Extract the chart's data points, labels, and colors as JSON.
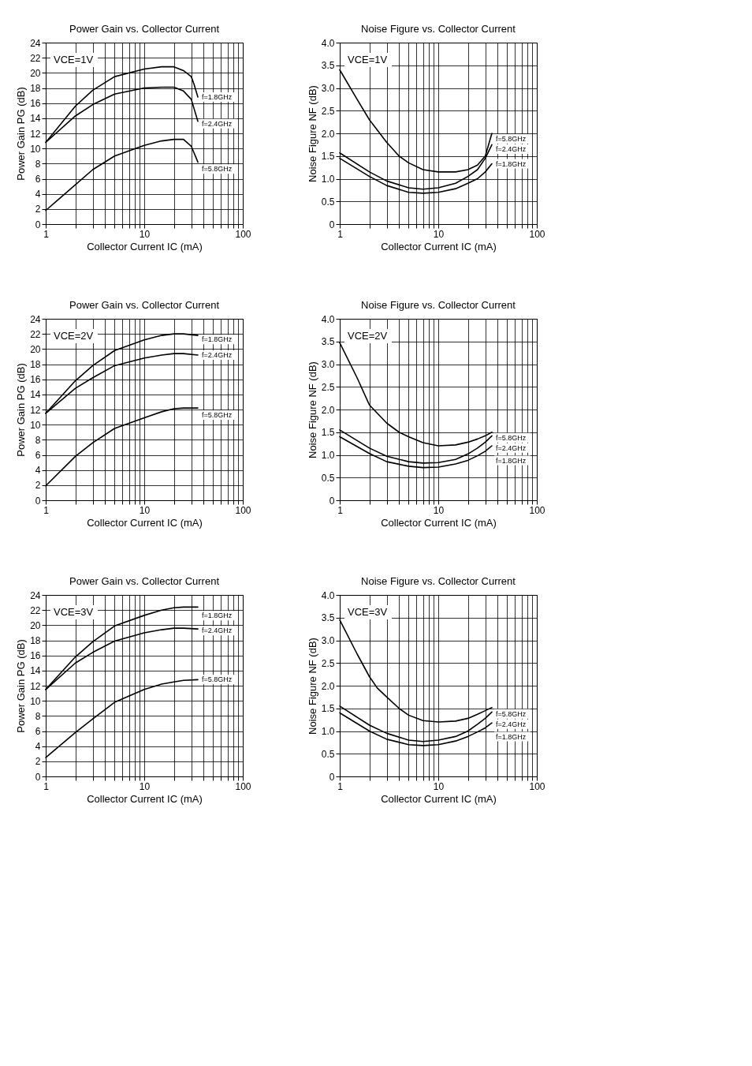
{
  "chart_data": [
    {
      "type": "line",
      "title": "Power Gain vs. Collector Current",
      "xlabel": "Collector Current   IC (mA)",
      "ylabel": "Power Gain   PG (dB)",
      "annotations": [
        "VCE=1V"
      ],
      "log": "x",
      "grid": true,
      "line_style": "solid",
      "xlim": [
        1,
        100
      ],
      "xticks": [
        1,
        {
          "value": 2,
          "label": null
        },
        {
          "value": 3,
          "label": null
        },
        {
          "value": 4,
          "label": null
        },
        {
          "value": 5,
          "label": null
        },
        {
          "value": 6,
          "label": null
        },
        {
          "value": 7,
          "label": null
        },
        {
          "value": 8,
          "label": null
        },
        {
          "value": 9,
          "label": null
        },
        10,
        {
          "value": 20,
          "label": null
        },
        {
          "value": 30,
          "label": null
        },
        {
          "value": 40,
          "label": null
        },
        {
          "value": 50,
          "label": null
        },
        {
          "value": 60,
          "label": null
        },
        {
          "value": 70,
          "label": null
        },
        {
          "value": 80,
          "label": null
        },
        {
          "value": 90,
          "label": null
        },
        100
      ],
      "ylim": [
        0,
        24
      ],
      "yticks": [
        0,
        2,
        4,
        6,
        8,
        10,
        12,
        14,
        16,
        18,
        20,
        22,
        24
      ],
      "series": [
        {
          "name": "f=1.8GHz",
          "color": "#000000",
          "x": [
            1,
            2,
            3,
            5,
            10,
            15,
            20,
            25,
            30,
            32,
            35
          ],
          "values": [
            10.8,
            15.6,
            17.7,
            19.5,
            20.5,
            20.8,
            20.8,
            20.3,
            19.5,
            18.5,
            16.8
          ]
        },
        {
          "name": "f=2.4GHz",
          "color": "#000000",
          "x": [
            1,
            2,
            3,
            5,
            10,
            15,
            20,
            25,
            30,
            35
          ],
          "values": [
            10.8,
            14.3,
            15.8,
            17.2,
            18.0,
            18.1,
            18.1,
            17.6,
            16.5,
            13.6
          ]
        },
        {
          "name": "f=5.8GHz",
          "color": "#000000",
          "x": [
            1,
            2,
            3,
            5,
            10,
            15,
            20,
            25,
            30,
            35
          ],
          "values": [
            1.8,
            5.2,
            7.2,
            9.0,
            10.4,
            11.0,
            11.2,
            11.2,
            10.3,
            8.2
          ]
        }
      ]
    },
    {
      "type": "line",
      "title": "Noise Figure vs. Collector Current",
      "xlabel": "Collector Current   IC (mA)",
      "ylabel": "Noise Figure   NF   (dB)",
      "annotations": [
        "VCE=1V"
      ],
      "log": "x",
      "grid": true,
      "line_style": "solid",
      "xlim": [
        1,
        100
      ],
      "xticks": [
        1,
        {
          "value": 2,
          "label": null
        },
        {
          "value": 3,
          "label": null
        },
        {
          "value": 4,
          "label": null
        },
        {
          "value": 5,
          "label": null
        },
        {
          "value": 6,
          "label": null
        },
        {
          "value": 7,
          "label": null
        },
        {
          "value": 8,
          "label": null
        },
        {
          "value": 9,
          "label": null
        },
        10,
        {
          "value": 20,
          "label": null
        },
        {
          "value": 30,
          "label": null
        },
        {
          "value": 40,
          "label": null
        },
        {
          "value": 50,
          "label": null
        },
        {
          "value": 60,
          "label": null
        },
        {
          "value": 70,
          "label": null
        },
        {
          "value": 80,
          "label": null
        },
        {
          "value": 90,
          "label": null
        },
        100
      ],
      "ylim": [
        0,
        4
      ],
      "yticks": [
        0,
        0.5,
        {
          "value": 1,
          "label": "1.0"
        },
        1.5,
        {
          "value": 2,
          "label": "2.0"
        },
        2.5,
        {
          "value": 3,
          "label": "3.0"
        },
        3.5,
        {
          "value": 4,
          "label": "4.0"
        }
      ],
      "series": [
        {
          "name": "f=5.8GHz",
          "color": "#000000",
          "x": [
            1,
            1.5,
            2,
            3,
            4,
            5,
            7,
            10,
            15,
            20,
            25,
            30,
            35
          ],
          "values": [
            3.4,
            2.75,
            2.3,
            1.8,
            1.5,
            1.35,
            1.2,
            1.15,
            1.15,
            1.2,
            1.3,
            1.5,
            2.0
          ]
        },
        {
          "name": "f=2.4GHz",
          "color": "#000000",
          "x": [
            1,
            2,
            3,
            5,
            7,
            10,
            15,
            20,
            25,
            30,
            35
          ],
          "values": [
            1.57,
            1.15,
            0.95,
            0.8,
            0.77,
            0.8,
            0.9,
            1.05,
            1.2,
            1.45,
            1.75
          ]
        },
        {
          "name": "f=1.8GHz",
          "color": "#000000",
          "x": [
            1,
            2,
            3,
            5,
            7,
            10,
            15,
            20,
            25,
            30,
            35
          ],
          "values": [
            1.45,
            1.05,
            0.85,
            0.7,
            0.68,
            0.7,
            0.78,
            0.9,
            1.0,
            1.15,
            1.33
          ]
        }
      ]
    },
    {
      "type": "line",
      "title": "Power Gain vs. Collector Current",
      "xlabel": "Collector Current   IC (mA)",
      "ylabel": "Power Gain   PG (dB)",
      "annotations": [
        "VCE=2V"
      ],
      "log": "x",
      "grid": true,
      "line_style": "solid",
      "xlim": [
        1,
        100
      ],
      "xticks": [
        1,
        {
          "value": 2,
          "label": null
        },
        {
          "value": 3,
          "label": null
        },
        {
          "value": 4,
          "label": null
        },
        {
          "value": 5,
          "label": null
        },
        {
          "value": 6,
          "label": null
        },
        {
          "value": 7,
          "label": null
        },
        {
          "value": 8,
          "label": null
        },
        {
          "value": 9,
          "label": null
        },
        10,
        {
          "value": 20,
          "label": null
        },
        {
          "value": 30,
          "label": null
        },
        {
          "value": 40,
          "label": null
        },
        {
          "value": 50,
          "label": null
        },
        {
          "value": 60,
          "label": null
        },
        {
          "value": 70,
          "label": null
        },
        {
          "value": 80,
          "label": null
        },
        {
          "value": 90,
          "label": null
        },
        100
      ],
      "ylim": [
        0,
        24
      ],
      "yticks": [
        0,
        2,
        4,
        6,
        8,
        10,
        12,
        14,
        16,
        18,
        20,
        22,
        24
      ],
      "series": [
        {
          "name": "f=1.8GHz",
          "color": "#000000",
          "x": [
            1,
            2,
            3,
            5,
            10,
            15,
            20,
            25,
            35
          ],
          "values": [
            11.5,
            15.8,
            17.8,
            19.8,
            21.2,
            21.8,
            22.0,
            22.0,
            21.8
          ]
        },
        {
          "name": "f=2.4GHz",
          "color": "#000000",
          "x": [
            1,
            2,
            3,
            5,
            10,
            15,
            20,
            25,
            35
          ],
          "values": [
            11.5,
            14.8,
            16.2,
            17.8,
            18.8,
            19.2,
            19.4,
            19.4,
            19.2
          ]
        },
        {
          "name": "f=5.8GHz",
          "color": "#000000",
          "x": [
            1,
            2,
            3,
            5,
            10,
            15,
            20,
            25,
            35
          ],
          "values": [
            1.9,
            5.8,
            7.6,
            9.5,
            10.9,
            11.7,
            12.1,
            12.2,
            12.2
          ]
        }
      ]
    },
    {
      "type": "line",
      "title": "Noise Figure vs. Collector Current",
      "xlabel": "Collector Current   IC (mA)",
      "ylabel": "Noise Figure   NF   (dB)",
      "annotations": [
        "VCE=2V"
      ],
      "log": "x",
      "grid": true,
      "line_style": "solid",
      "xlim": [
        1,
        100
      ],
      "xticks": [
        1,
        {
          "value": 2,
          "label": null
        },
        {
          "value": 3,
          "label": null
        },
        {
          "value": 4,
          "label": null
        },
        {
          "value": 5,
          "label": null
        },
        {
          "value": 6,
          "label": null
        },
        {
          "value": 7,
          "label": null
        },
        {
          "value": 8,
          "label": null
        },
        {
          "value": 9,
          "label": null
        },
        10,
        {
          "value": 20,
          "label": null
        },
        {
          "value": 30,
          "label": null
        },
        {
          "value": 40,
          "label": null
        },
        {
          "value": 50,
          "label": null
        },
        {
          "value": 60,
          "label": null
        },
        {
          "value": 70,
          "label": null
        },
        {
          "value": 80,
          "label": null
        },
        {
          "value": 90,
          "label": null
        },
        100
      ],
      "ylim": [
        0,
        4
      ],
      "yticks": [
        0,
        0.5,
        {
          "value": 1,
          "label": "1.0"
        },
        1.5,
        {
          "value": 2,
          "label": "2.0"
        },
        2.5,
        {
          "value": 3,
          "label": "3.0"
        },
        3.5,
        {
          "value": 4,
          "label": "4.0"
        }
      ],
      "series": [
        {
          "name": "f=5.8GHz",
          "color": "#000000",
          "x": [
            1,
            1.5,
            2,
            3,
            4,
            5,
            7,
            10,
            15,
            20,
            25,
            30,
            35
          ],
          "values": [
            3.47,
            2.7,
            2.1,
            1.7,
            1.5,
            1.4,
            1.27,
            1.2,
            1.22,
            1.28,
            1.35,
            1.42,
            1.5
          ]
        },
        {
          "name": "f=2.4GHz",
          "color": "#000000",
          "x": [
            1,
            2,
            3,
            5,
            7,
            10,
            15,
            20,
            25,
            30,
            35
          ],
          "values": [
            1.55,
            1.15,
            0.97,
            0.85,
            0.82,
            0.83,
            0.9,
            1.02,
            1.15,
            1.28,
            1.42
          ]
        },
        {
          "name": "f=1.8GHz",
          "color": "#000000",
          "x": [
            1,
            2,
            3,
            5,
            7,
            10,
            15,
            20,
            25,
            30,
            35
          ],
          "values": [
            1.4,
            1.03,
            0.85,
            0.75,
            0.72,
            0.73,
            0.8,
            0.88,
            0.98,
            1.08,
            1.2
          ]
        }
      ]
    },
    {
      "type": "line",
      "title": "Power Gain vs. Collector Current",
      "xlabel": "Collector Current   IC (mA)",
      "ylabel": "Power Gain   PG (dB)",
      "annotations": [
        "VCE=3V"
      ],
      "log": "x",
      "grid": true,
      "line_style": "solid",
      "xlim": [
        1,
        100
      ],
      "xticks": [
        1,
        {
          "value": 2,
          "label": null
        },
        {
          "value": 3,
          "label": null
        },
        {
          "value": 4,
          "label": null
        },
        {
          "value": 5,
          "label": null
        },
        {
          "value": 6,
          "label": null
        },
        {
          "value": 7,
          "label": null
        },
        {
          "value": 8,
          "label": null
        },
        {
          "value": 9,
          "label": null
        },
        10,
        {
          "value": 20,
          "label": null
        },
        {
          "value": 30,
          "label": null
        },
        {
          "value": 40,
          "label": null
        },
        {
          "value": 50,
          "label": null
        },
        {
          "value": 60,
          "label": null
        },
        {
          "value": 70,
          "label": null
        },
        {
          "value": 80,
          "label": null
        },
        {
          "value": 90,
          "label": null
        },
        100
      ],
      "ylim": [
        0,
        24
      ],
      "yticks": [
        0,
        2,
        4,
        6,
        8,
        10,
        12,
        14,
        16,
        18,
        20,
        22,
        24
      ],
      "series": [
        {
          "name": "f=1.8GHz",
          "color": "#000000",
          "x": [
            1,
            2,
            3,
            5,
            10,
            15,
            20,
            25,
            35
          ],
          "values": [
            11.5,
            15.8,
            17.8,
            19.9,
            21.3,
            22.0,
            22.3,
            22.4,
            22.4
          ]
        },
        {
          "name": "f=2.4GHz",
          "color": "#000000",
          "x": [
            1,
            2,
            3,
            5,
            10,
            15,
            20,
            25,
            35
          ],
          "values": [
            11.5,
            15.0,
            16.4,
            17.9,
            19.0,
            19.4,
            19.6,
            19.6,
            19.5
          ]
        },
        {
          "name": "f=5.8GHz",
          "color": "#000000",
          "x": [
            1,
            2,
            3,
            5,
            10,
            15,
            20,
            25,
            35
          ],
          "values": [
            2.5,
            5.8,
            7.6,
            9.8,
            11.5,
            12.2,
            12.5,
            12.7,
            12.8
          ]
        }
      ]
    },
    {
      "type": "line",
      "title": "Noise Figure vs. Collector Current",
      "xlabel": "Collector Current   IC (mA)",
      "ylabel": "Noise Figure   NF   (dB)",
      "annotations": [
        "VCE=3V"
      ],
      "log": "x",
      "grid": true,
      "line_style": "solid",
      "xlim": [
        1,
        100
      ],
      "xticks": [
        1,
        {
          "value": 2,
          "label": null
        },
        {
          "value": 3,
          "label": null
        },
        {
          "value": 4,
          "label": null
        },
        {
          "value": 5,
          "label": null
        },
        {
          "value": 6,
          "label": null
        },
        {
          "value": 7,
          "label": null
        },
        {
          "value": 8,
          "label": null
        },
        {
          "value": 9,
          "label": null
        },
        10,
        {
          "value": 20,
          "label": null
        },
        {
          "value": 30,
          "label": null
        },
        {
          "value": 40,
          "label": null
        },
        {
          "value": 50,
          "label": null
        },
        {
          "value": 60,
          "label": null
        },
        {
          "value": 70,
          "label": null
        },
        {
          "value": 80,
          "label": null
        },
        {
          "value": 90,
          "label": null
        },
        100
      ],
      "ylim": [
        0,
        4
      ],
      "yticks": [
        0,
        0.5,
        {
          "value": 1,
          "label": "1.0"
        },
        1.5,
        {
          "value": 2,
          "label": "2.0"
        },
        2.5,
        {
          "value": 3,
          "label": "3.0"
        },
        3.5,
        {
          "value": 4,
          "label": "4.0"
        }
      ],
      "series": [
        {
          "name": "f=5.8GHz",
          "color": "#000000",
          "x": [
            1,
            1.5,
            2,
            2.4,
            3,
            4,
            5,
            7,
            10,
            15,
            20,
            25,
            30,
            35
          ],
          "values": [
            3.45,
            2.7,
            2.2,
            1.95,
            1.75,
            1.5,
            1.35,
            1.23,
            1.2,
            1.22,
            1.28,
            1.37,
            1.45,
            1.52
          ]
        },
        {
          "name": "f=2.4GHz",
          "color": "#000000",
          "x": [
            1,
            2,
            3,
            5,
            7,
            10,
            15,
            20,
            25,
            30,
            35
          ],
          "values": [
            1.55,
            1.13,
            0.95,
            0.8,
            0.77,
            0.8,
            0.88,
            1.0,
            1.15,
            1.28,
            1.42
          ]
        },
        {
          "name": "f=1.8GHz",
          "color": "#000000",
          "x": [
            1,
            2,
            3,
            5,
            7,
            10,
            15,
            20,
            25,
            30,
            35
          ],
          "values": [
            1.4,
            1.0,
            0.82,
            0.7,
            0.68,
            0.7,
            0.78,
            0.88,
            0.98,
            1.07,
            1.18
          ]
        }
      ]
    }
  ]
}
